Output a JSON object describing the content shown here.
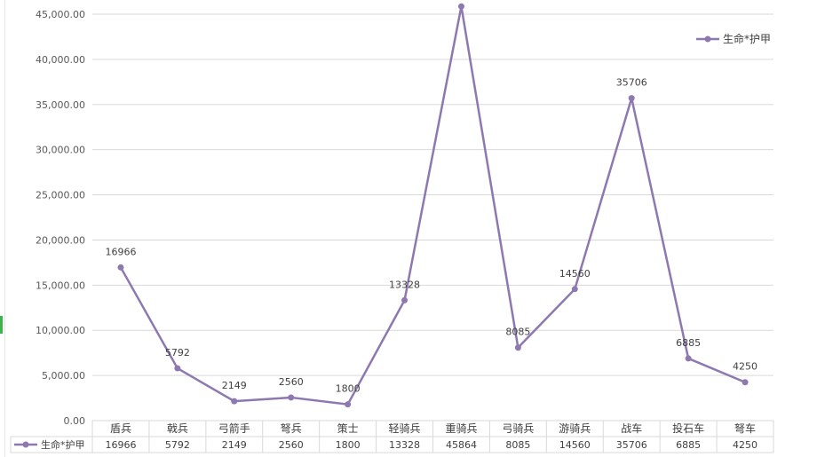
{
  "chart_data": {
    "type": "line",
    "categories": [
      "盾兵",
      "戟兵",
      "弓箭手",
      "弩兵",
      "策士",
      "轻骑兵",
      "重骑兵",
      "弓骑兵",
      "游骑兵",
      "战车",
      "投石车",
      "弩车"
    ],
    "series": [
      {
        "name": "生命*护甲",
        "values": [
          16966,
          5792,
          2149,
          2560,
          1800,
          13328,
          45864,
          8085,
          14560,
          35706,
          6885,
          4250
        ],
        "color": "#8e78b0"
      }
    ],
    "ylim": [
      0,
      45000
    ],
    "yticks": [
      "0.00",
      "5,000.00",
      "10,000.00",
      "15,000.00",
      "20,000.00",
      "25,000.00",
      "30,000.00",
      "35,000.00",
      "40,000.00",
      "45,000.00"
    ],
    "ytick_values": [
      0,
      5000,
      10000,
      15000,
      20000,
      25000,
      30000,
      35000,
      40000,
      45000
    ],
    "title": "",
    "xlabel": "",
    "ylabel": "",
    "grid": true,
    "legend": "top-right",
    "data_table": true,
    "data_labels": true
  }
}
